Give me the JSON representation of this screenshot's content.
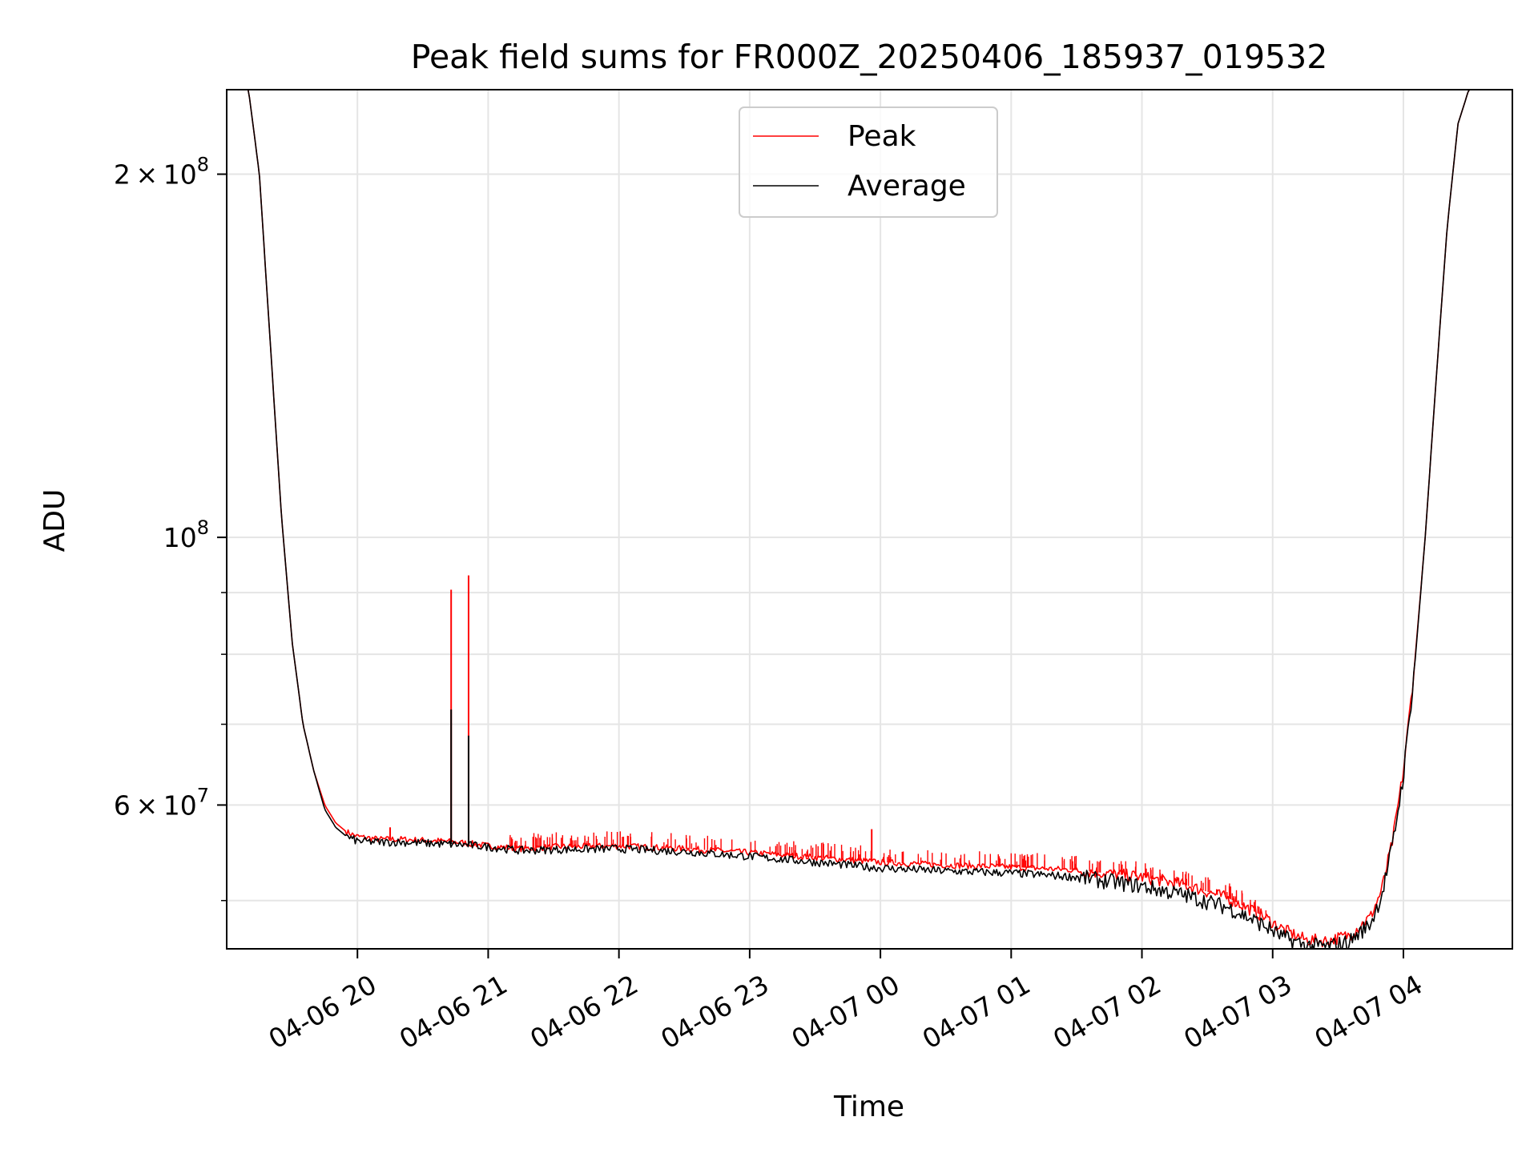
{
  "chart_data": {
    "type": "line",
    "title": "Peak field sums for FR000Z_20250406_185937_019532",
    "xlabel": "Time",
    "ylabel": "ADU",
    "y_scale": "log",
    "xlim": [
      "2025-04-06 19:00",
      "2025-04-07 04:50"
    ],
    "ylim": [
      45600000,
      235000000
    ],
    "x_ticks": [
      {
        "value": "2025-04-06 20:00",
        "label": "04-06 20"
      },
      {
        "value": "2025-04-06 21:00",
        "label": "04-06 21"
      },
      {
        "value": "2025-04-06 22:00",
        "label": "04-06 22"
      },
      {
        "value": "2025-04-06 23:00",
        "label": "04-06 23"
      },
      {
        "value": "2025-04-07 00:00",
        "label": "04-07 00"
      },
      {
        "value": "2025-04-07 01:00",
        "label": "04-07 01"
      },
      {
        "value": "2025-04-07 02:00",
        "label": "04-07 02"
      },
      {
        "value": "2025-04-07 03:00",
        "label": "04-07 03"
      },
      {
        "value": "2025-04-07 04:00",
        "label": "04-07 04"
      }
    ],
    "y_ticks": [
      {
        "value": 200000000,
        "mant": "2",
        "exp": "8"
      },
      {
        "value": 100000000,
        "mant": "",
        "exp": "8"
      },
      {
        "value": 60000000,
        "mant": "6",
        "exp": "7"
      }
    ],
    "y_minor_ticks": [
      50000000,
      70000000,
      80000000,
      90000000
    ],
    "grid": true,
    "legend_position": "top-center",
    "series": [
      {
        "name": "Peak",
        "color": "#ff0000",
        "x": [
          "2025-04-06 19:00",
          "2025-04-06 19:10",
          "2025-04-06 19:15",
          "2025-04-06 19:20",
          "2025-04-06 19:25",
          "2025-04-06 19:30",
          "2025-04-06 19:35",
          "2025-04-06 19:40",
          "2025-04-06 19:45",
          "2025-04-06 19:50",
          "2025-04-06 19:55",
          "2025-04-06 20:00",
          "2025-04-06 20:10",
          "2025-04-06 20:20",
          "2025-04-06 20:30",
          "2025-04-06 20:40",
          "2025-04-06 20:50",
          "2025-04-06 21:00",
          "2025-04-06 21:15",
          "2025-04-06 21:30",
          "2025-04-06 22:00",
          "2025-04-06 22:30",
          "2025-04-06 23:00",
          "2025-04-06 23:30",
          "2025-04-07 00:00",
          "2025-04-07 00:30",
          "2025-04-07 01:00",
          "2025-04-07 01:30",
          "2025-04-07 02:00",
          "2025-04-07 02:20",
          "2025-04-07 02:40",
          "2025-04-07 02:55",
          "2025-04-07 03:05",
          "2025-04-07 03:15",
          "2025-04-07 03:25",
          "2025-04-07 03:35",
          "2025-04-07 03:45",
          "2025-04-07 03:50",
          "2025-04-07 03:55",
          "2025-04-07 04:00",
          "2025-04-07 04:05",
          "2025-04-07 04:10",
          "2025-04-07 04:15",
          "2025-04-07 04:20",
          "2025-04-07 04:25",
          "2025-04-07 04:30",
          "2025-04-07 04:35",
          "2025-04-07 04:50"
        ],
        "y": [
          235000000,
          235000000,
          200000000,
          145000000,
          105000000,
          82000000,
          70000000,
          64000000,
          60000000,
          58000000,
          57000000,
          56500000,
          56200000,
          56200000,
          56100000,
          56000000,
          55800000,
          55500000,
          55200000,
          55400000,
          55500000,
          55200000,
          54800000,
          54300000,
          53800000,
          53500000,
          53300000,
          53000000,
          52300000,
          51500000,
          50200000,
          48600000,
          47300000,
          46400000,
          46300000,
          46800000,
          48500000,
          51000000,
          56000000,
          64000000,
          78000000,
          100000000,
          135000000,
          180000000,
          220000000,
          235000000,
          235000000,
          235000000
        ],
        "spikes": [
          {
            "x": "2025-04-06 20:43",
            "y": 90500000
          },
          {
            "x": "2025-04-06 20:51",
            "y": 93000000
          },
          {
            "x": "2025-04-06 20:15",
            "y": 57500000
          },
          {
            "x": "2025-04-06 23:56",
            "y": 57300000
          }
        ]
      },
      {
        "name": "Average",
        "color": "#000000",
        "x": [
          "2025-04-06 19:00",
          "2025-04-06 19:10",
          "2025-04-06 19:15",
          "2025-04-06 19:20",
          "2025-04-06 19:25",
          "2025-04-06 19:30",
          "2025-04-06 19:35",
          "2025-04-06 19:40",
          "2025-04-06 19:45",
          "2025-04-06 19:50",
          "2025-04-06 19:55",
          "2025-04-06 20:00",
          "2025-04-06 20:10",
          "2025-04-06 20:20",
          "2025-04-06 20:30",
          "2025-04-06 20:40",
          "2025-04-06 20:50",
          "2025-04-06 21:00",
          "2025-04-06 21:15",
          "2025-04-06 21:30",
          "2025-04-06 22:00",
          "2025-04-06 22:30",
          "2025-04-06 23:00",
          "2025-04-06 23:30",
          "2025-04-07 00:00",
          "2025-04-07 00:30",
          "2025-04-07 01:00",
          "2025-04-07 01:30",
          "2025-04-07 02:00",
          "2025-04-07 02:20",
          "2025-04-07 02:40",
          "2025-04-07 02:55",
          "2025-04-07 03:05",
          "2025-04-07 03:15",
          "2025-04-07 03:25",
          "2025-04-07 03:35",
          "2025-04-07 03:45",
          "2025-04-07 03:50",
          "2025-04-07 03:55",
          "2025-04-07 04:00",
          "2025-04-07 04:05",
          "2025-04-07 04:10",
          "2025-04-07 04:15",
          "2025-04-07 04:20",
          "2025-04-07 04:25",
          "2025-04-07 04:30",
          "2025-04-07 04:35",
          "2025-04-07 04:50"
        ],
        "y": [
          235000000,
          235000000,
          200000000,
          145000000,
          105000000,
          82000000,
          70000000,
          64000000,
          59500000,
          57500000,
          56500000,
          56000000,
          55900000,
          55900000,
          55800000,
          55700000,
          55600000,
          55400000,
          55000000,
          55100000,
          55200000,
          54900000,
          54400000,
          53800000,
          53200000,
          52900000,
          52700000,
          52300000,
          51400000,
          50500000,
          49300000,
          47800000,
          46600000,
          45900000,
          45800000,
          46200000,
          47900000,
          50500000,
          55500000,
          63500000,
          77500000,
          100000000,
          135000000,
          180000000,
          220000000,
          235000000,
          235000000,
          235000000
        ],
        "spikes": [
          {
            "x": "2025-04-06 20:43",
            "y": 72000000
          },
          {
            "x": "2025-04-06 20:51",
            "y": 68500000
          }
        ]
      }
    ]
  }
}
